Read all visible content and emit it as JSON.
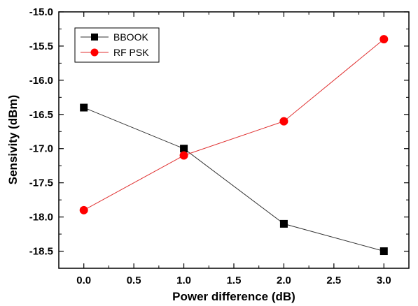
{
  "chart_data": {
    "type": "line",
    "xlabel": "Power difference (dB)",
    "ylabel": "Sensivity (dBm)",
    "xlim": [
      -0.25,
      3.25
    ],
    "ylim": [
      -18.75,
      -15.0
    ],
    "xticks": [
      0.0,
      0.5,
      1.0,
      1.5,
      2.0,
      2.5,
      3.0
    ],
    "xtick_labels": [
      "0.0",
      "0.5",
      "1.0",
      "1.5",
      "2.0",
      "2.5",
      "3.0"
    ],
    "yticks": [
      -15.0,
      -15.5,
      -16.0,
      -16.5,
      -17.0,
      -17.5,
      -18.0,
      -18.5
    ],
    "ytick_labels": [
      "-15.0",
      "-15.5",
      "-16.0",
      "-16.5",
      "-17.0",
      "-17.5",
      "-18.0",
      "-18.5"
    ],
    "grid": false,
    "legend_position": "top-left",
    "series": [
      {
        "name": "BBOOK",
        "marker": "square",
        "color": "#000000",
        "line_color": "#333333",
        "x": [
          0,
          1,
          2,
          3
        ],
        "y": [
          -16.4,
          -17.0,
          -18.1,
          -18.5
        ]
      },
      {
        "name": "RF PSK",
        "marker": "circle",
        "color": "#ff0000",
        "line_color": "#e03030",
        "x": [
          0,
          1,
          2,
          3
        ],
        "y": [
          -17.9,
          -17.1,
          -16.6,
          -15.4
        ]
      }
    ]
  }
}
